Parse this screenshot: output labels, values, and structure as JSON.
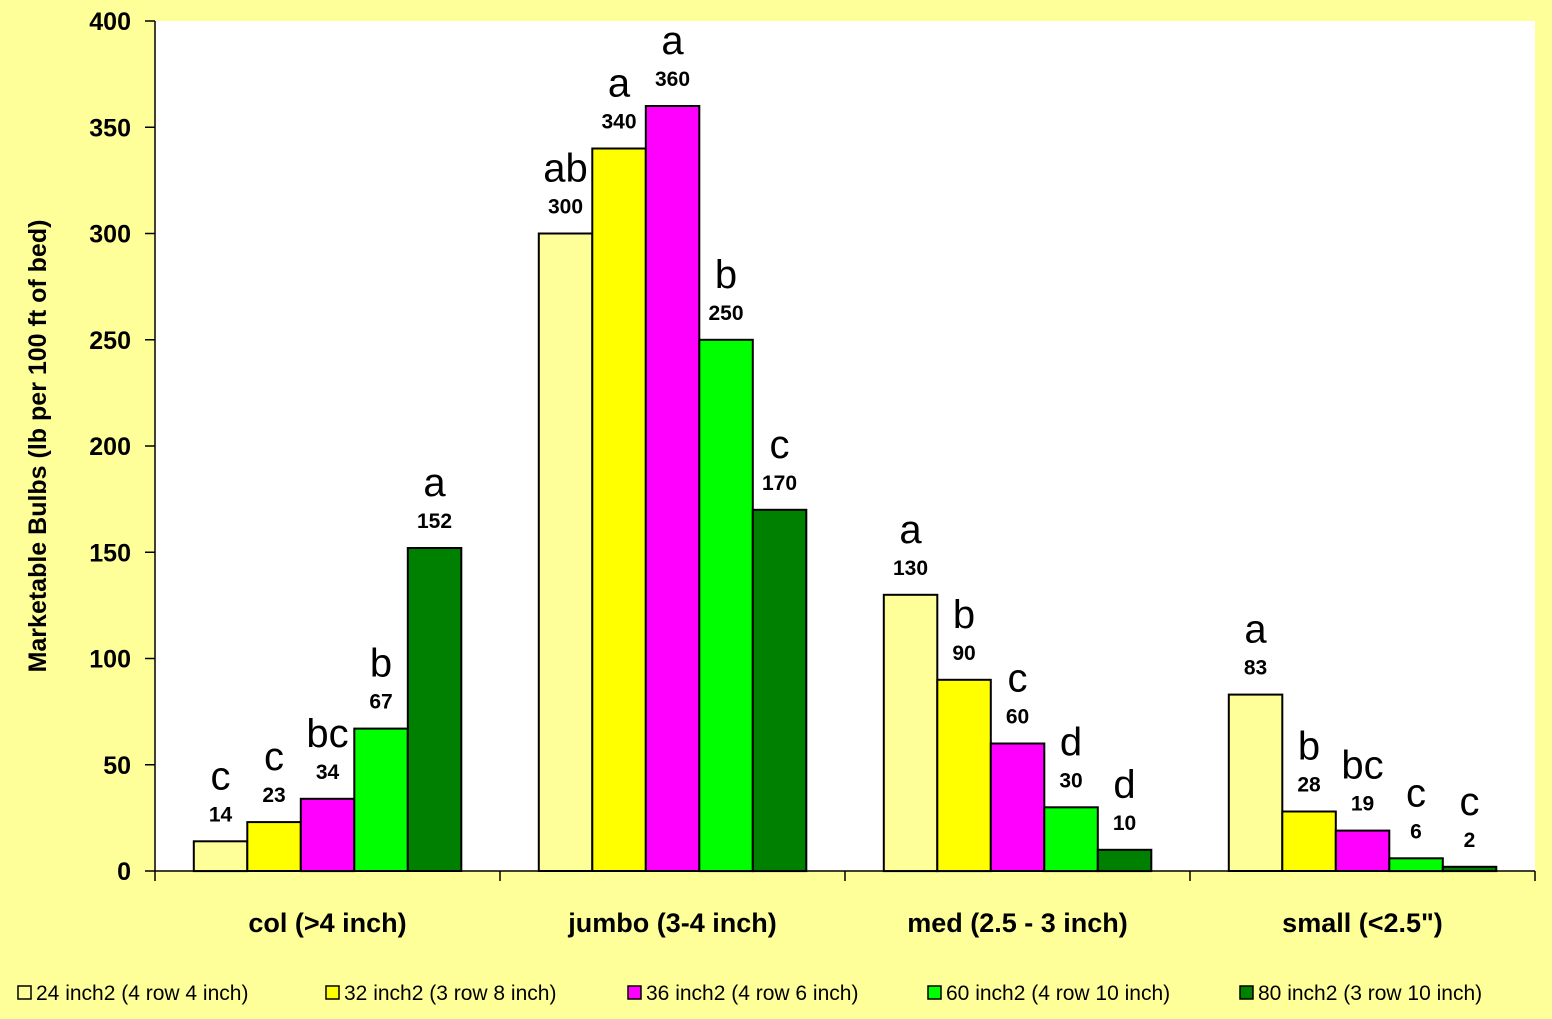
{
  "chart_data": {
    "type": "bar",
    "ylabel": "Marketable Bulbs (lb per 100 ft of bed)",
    "xlabel": "",
    "ylim": [
      0,
      400
    ],
    "yticks": [
      0,
      50,
      100,
      150,
      200,
      250,
      300,
      350,
      400
    ],
    "grid": false,
    "legend_position": "bottom",
    "categories": [
      "col (>4 inch)",
      "jumbo (3-4 inch)",
      "med (2.5 - 3 inch)",
      "small (<2.5\")"
    ],
    "series": [
      {
        "name": "24 inch2 (4 row 4 inch)",
        "color": "#FFFF99",
        "values": [
          14,
          300,
          130,
          83
        ],
        "sig": [
          "c",
          "ab",
          "a",
          "a"
        ]
      },
      {
        "name": "32 inch2 (3 row 8 inch)",
        "color": "#FFFF00",
        "values": [
          23,
          340,
          90,
          28
        ],
        "sig": [
          "c",
          "a",
          "b",
          "b"
        ]
      },
      {
        "name": "36 inch2 (4 row 6 inch)",
        "color": "#FF00FF",
        "values": [
          34,
          360,
          60,
          19
        ],
        "sig": [
          "bc",
          "a",
          "c",
          "bc"
        ]
      },
      {
        "name": "60 inch2 (4 row 10 inch)",
        "color": "#00FF00",
        "values": [
          67,
          250,
          30,
          6
        ],
        "sig": [
          "b",
          "b",
          "d",
          "c"
        ]
      },
      {
        "name": "80 inch2 (3 row 10 inch)",
        "color": "#008000",
        "values": [
          152,
          170,
          10,
          2
        ],
        "sig": [
          "a",
          "c",
          "d",
          "c"
        ]
      }
    ]
  },
  "colors": {
    "background": "#FFFF99",
    "plot_area": "#FFFFFF"
  }
}
